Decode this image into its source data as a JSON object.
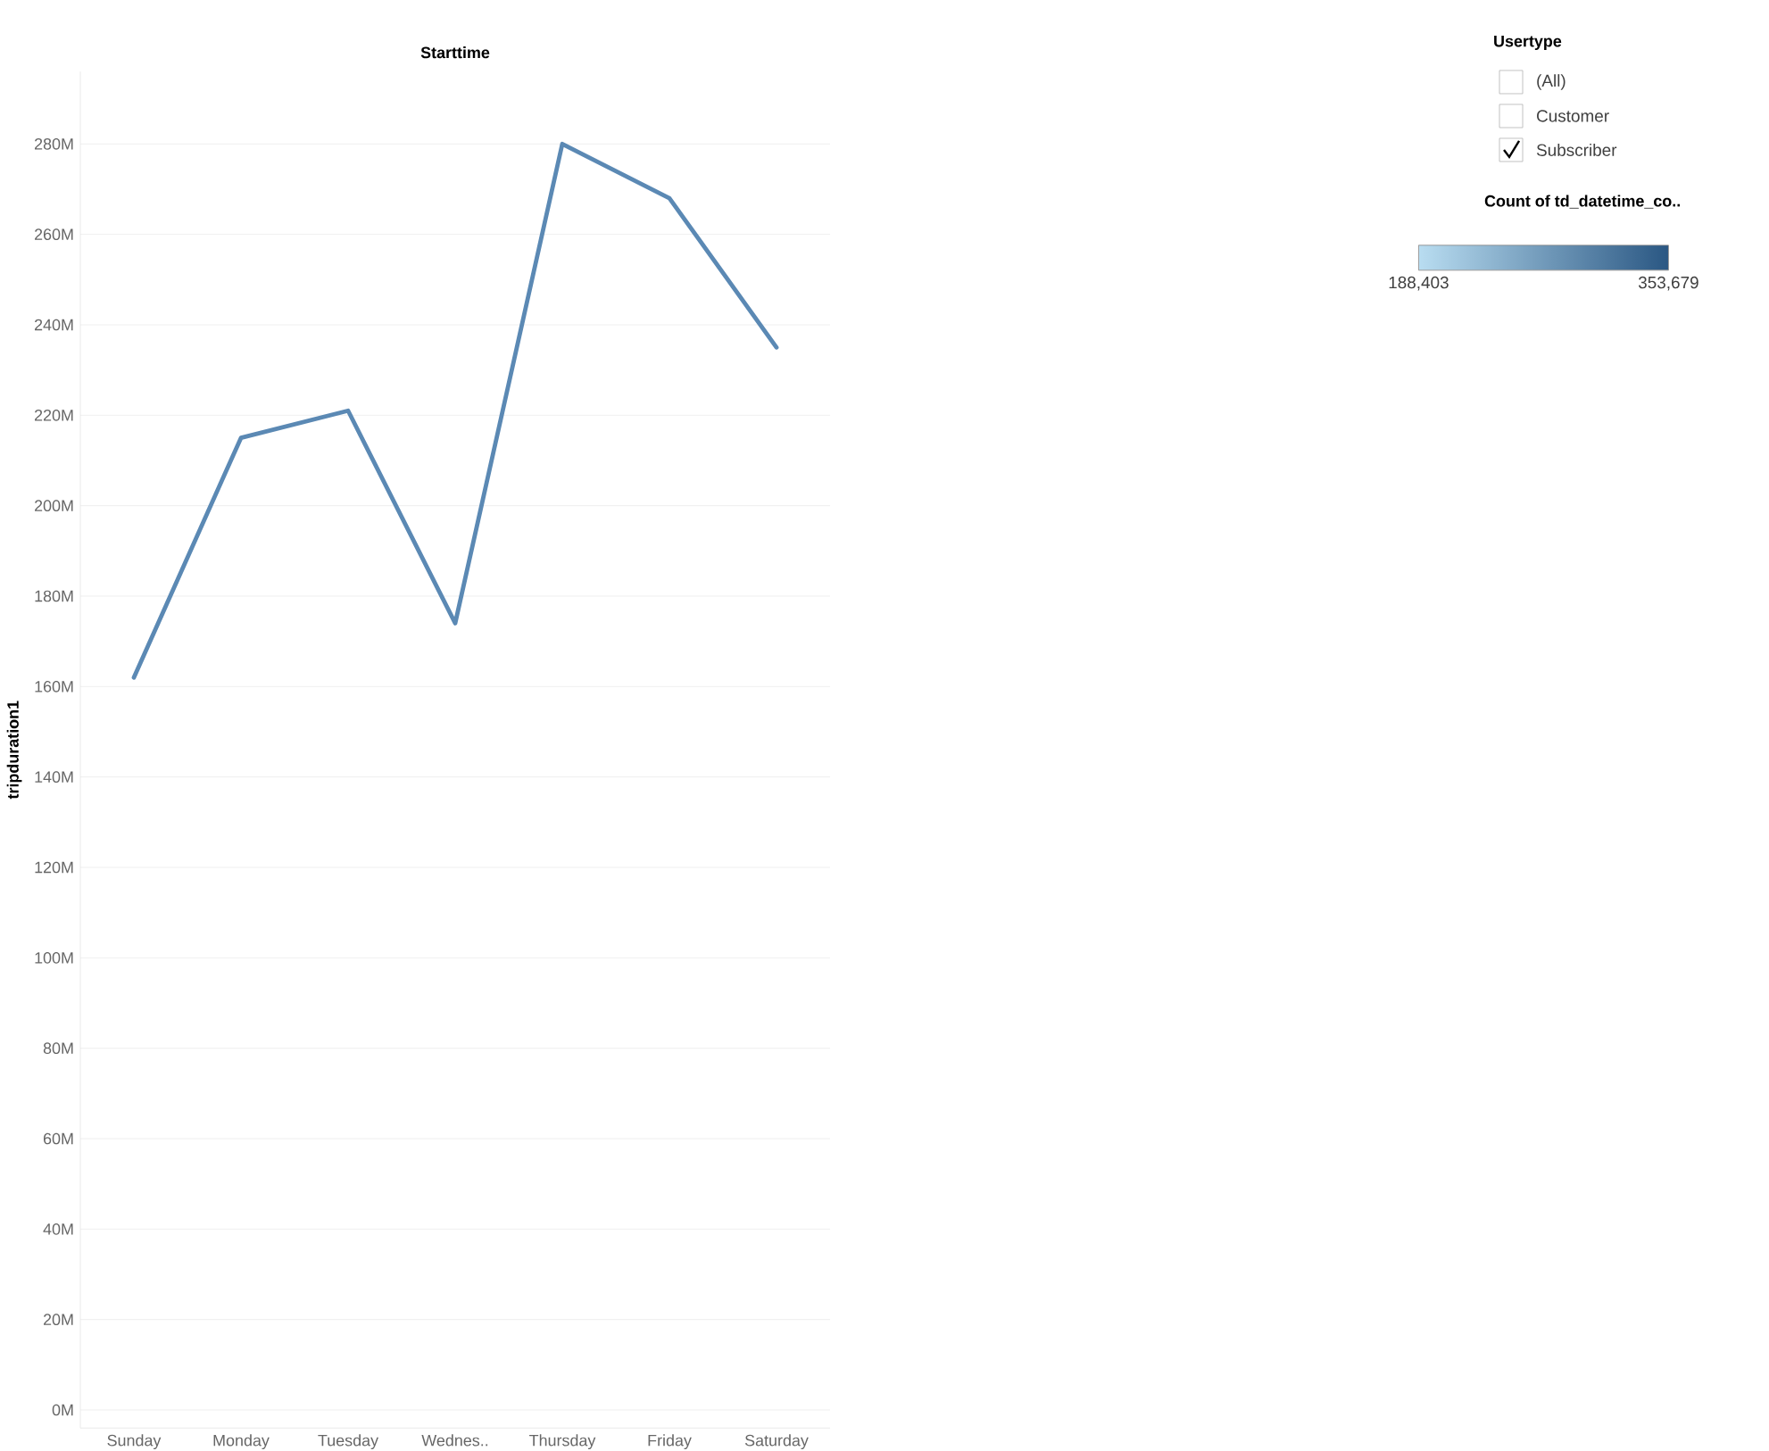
{
  "chart_data": {
    "type": "line",
    "title": "Starttime",
    "ylabel": "tripduration1",
    "categories": [
      "Sunday",
      "Monday",
      "Tuesday",
      "Wednes..",
      "Thursday",
      "Friday",
      "Saturday"
    ],
    "series": [
      {
        "color": "#5b89b4",
        "values": [
          162,
          215,
          221,
          174,
          280,
          268,
          235
        ]
      }
    ],
    "clabel": "Count of td_datetime_co..",
    "clim": [
      188403,
      353679
    ],
    "cticks": [
      {
        "value": 188403,
        "label": "188,403"
      },
      {
        "value": 353679,
        "label": "353,679"
      }
    ],
    "ylim": [
      -4,
      296
    ],
    "yticks": [
      {
        "value": 0,
        "label": "0M"
      },
      {
        "value": 20,
        "label": "20M"
      },
      {
        "value": 40,
        "label": "40M"
      },
      {
        "value": 60,
        "label": "60M"
      },
      {
        "value": 80,
        "label": "80M"
      },
      {
        "value": 100,
        "label": "100M"
      },
      {
        "value": 120,
        "label": "120M"
      },
      {
        "value": 140,
        "label": "140M"
      },
      {
        "value": 160,
        "label": "160M"
      },
      {
        "value": 180,
        "label": "180M"
      },
      {
        "value": 200,
        "label": "200M"
      },
      {
        "value": 220,
        "label": "220M"
      },
      {
        "value": 240,
        "label": "240M"
      },
      {
        "value": 260,
        "label": "260M"
      },
      {
        "value": 280,
        "label": "280M"
      }
    ],
    "grid": "y",
    "annotations": [
      "Usertype",
      "(All)",
      "Customer",
      "Subscriber"
    ]
  }
}
